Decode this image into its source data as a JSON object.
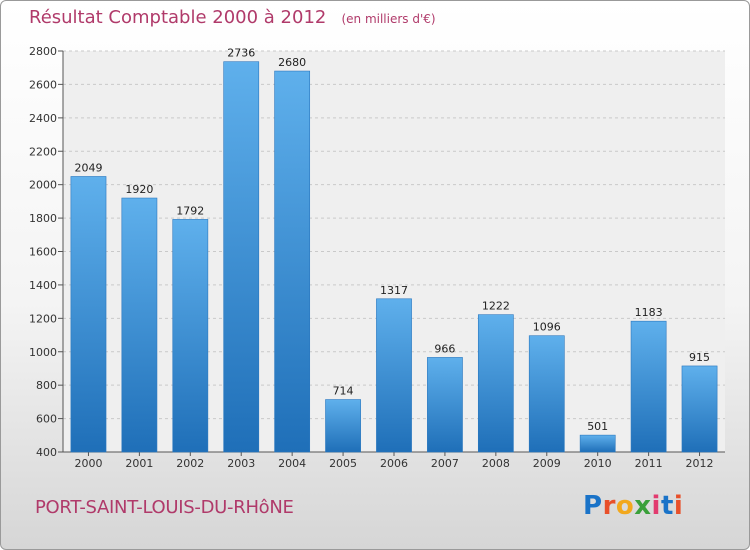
{
  "chart_data": {
    "type": "bar",
    "title": "Résultat Comptable 2000 à 2012",
    "subtitle": "(en milliers d'€)",
    "categories": [
      "2000",
      "2001",
      "2002",
      "2003",
      "2004",
      "2005",
      "2006",
      "2007",
      "2008",
      "2009",
      "2010",
      "2011",
      "2012"
    ],
    "values": [
      2049,
      1920,
      1792,
      2736,
      2680,
      714,
      1317,
      966,
      1222,
      1096,
      501,
      1183,
      915
    ],
    "ylim": [
      400,
      2800
    ],
    "yticks": [
      400,
      600,
      800,
      1000,
      1200,
      1400,
      1600,
      1800,
      2000,
      2200,
      2400,
      2600,
      2800
    ],
    "grid": true,
    "bar_color": "#3a8fd6"
  },
  "footer": {
    "city": "PORT-SAINT-LOUIS-DU-RHôNE",
    "brand": "Proxiti"
  },
  "colors": {
    "title": "#b03a6a",
    "bar_top": "#5fb0ec",
    "bar_bottom": "#1f6fb8"
  }
}
